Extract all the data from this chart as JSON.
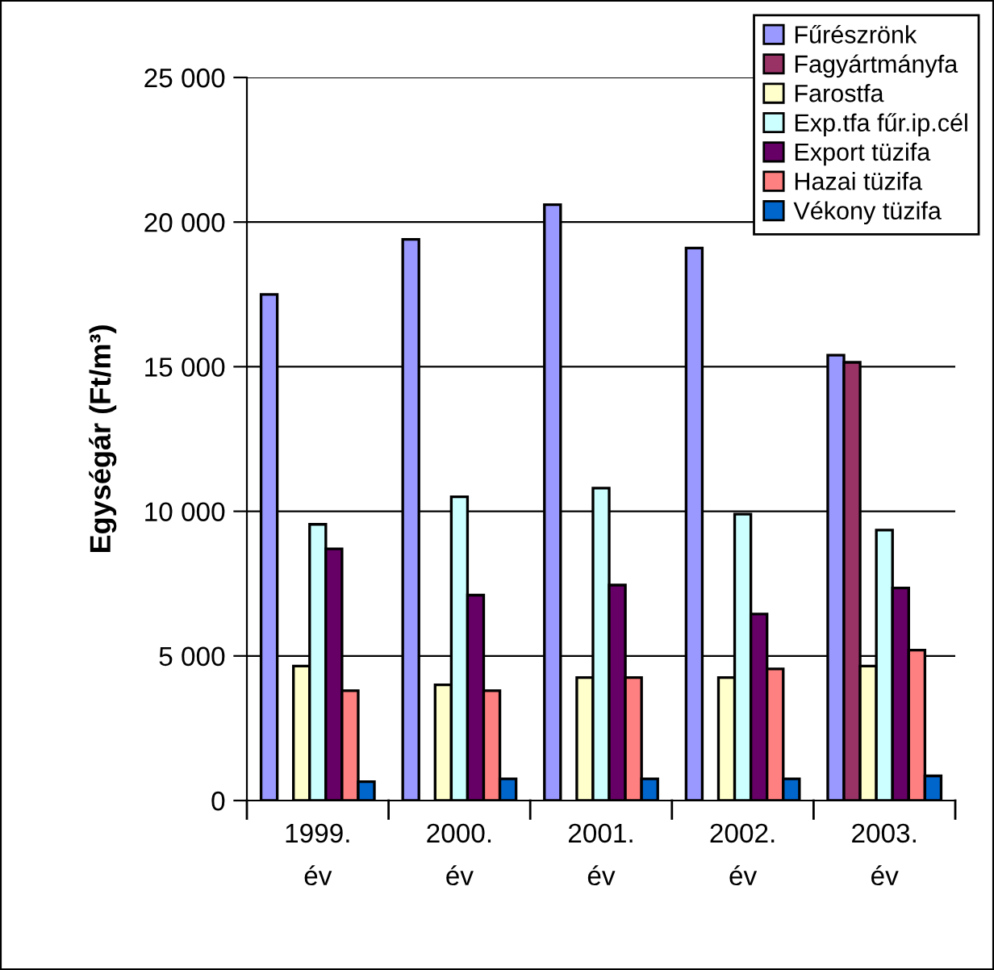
{
  "chart_data": {
    "type": "bar",
    "ylabel": "Egységár (Ft/m³)",
    "categories": [
      "1999.\név",
      "2000.\név",
      "2001.\név",
      "2002.\név",
      "2003.\név"
    ],
    "series": [
      {
        "name": "Fűrészrönk",
        "color": "#9999ff",
        "values": [
          17500,
          19400,
          20600,
          19100,
          15400
        ]
      },
      {
        "name": "Fagyártmányfa",
        "color": "#993366",
        "values": [
          null,
          null,
          null,
          null,
          15150
        ]
      },
      {
        "name": "Farostfa",
        "color": "#ffffcc",
        "values": [
          4650,
          4000,
          4250,
          4250,
          4650
        ]
      },
      {
        "name": "Exp.tfa fűr.ip.cél",
        "color": "#ccffff",
        "values": [
          9550,
          10500,
          10800,
          9900,
          9350
        ]
      },
      {
        "name": "Export tüzifa",
        "color": "#660066",
        "values": [
          8700,
          7100,
          7450,
          6450,
          7350
        ]
      },
      {
        "name": "Hazai tüzifa",
        "color": "#ff8080",
        "values": [
          3800,
          3800,
          4250,
          4550,
          5200
        ]
      },
      {
        "name": "Vékony tüzifa",
        "color": "#0066cc",
        "values": [
          650,
          750,
          750,
          750,
          850
        ]
      }
    ],
    "ylim": [
      0,
      25000
    ],
    "yticks": [
      {
        "value": 0,
        "label": "0"
      },
      {
        "value": 5000,
        "label": "5 000"
      },
      {
        "value": 10000,
        "label": "10 000"
      },
      {
        "value": 15000,
        "label": "15 000"
      },
      {
        "value": 20000,
        "label": "20 000"
      },
      {
        "value": 25000,
        "label": "25 000"
      }
    ],
    "grid": "y",
    "legend": "top right"
  }
}
